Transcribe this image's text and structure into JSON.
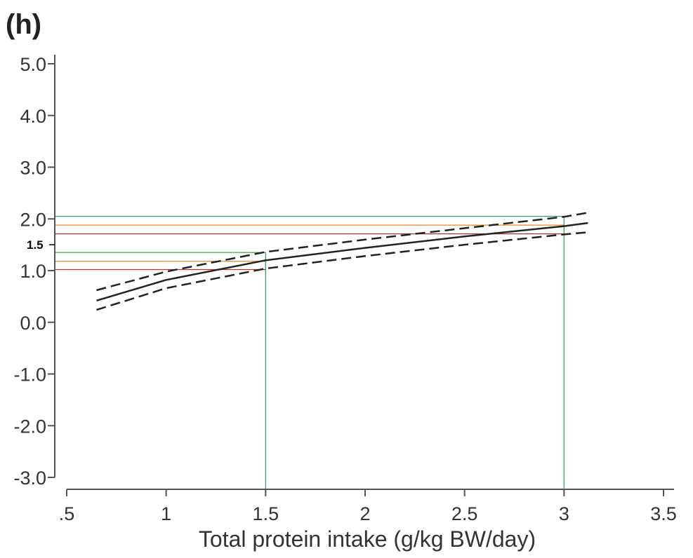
{
  "chart_data": {
    "type": "line",
    "panel_label": "(h)",
    "title": "",
    "xlabel": "Total protein intake (g/kg BW/day)",
    "ylabel": "",
    "xlim": [
      0.5,
      3.5
    ],
    "ylim": [
      -3.0,
      5.0
    ],
    "x_ticks": [
      ".5",
      "1",
      "1.5",
      "2",
      "2.5",
      "3",
      "3.5"
    ],
    "y_ticks": [
      "5.0",
      "4.0",
      "3.0",
      "2.0",
      "1.0",
      "0.0",
      "-1.0",
      "-2.0",
      "-3.0"
    ],
    "y_annotation": {
      "value": 1.5,
      "label": "1.5"
    },
    "colors": {
      "estimate": "#222222",
      "ci": "#222222",
      "green": "#2e9b4e",
      "orange": "#e08a2b",
      "red": "#b0332f",
      "axis": "#555555"
    },
    "series": [
      {
        "name": "estimate",
        "style": "solid",
        "x": [
          0.65,
          1.0,
          1.5,
          2.0,
          2.5,
          3.0,
          3.12
        ],
        "y": [
          0.42,
          0.82,
          1.2,
          1.44,
          1.66,
          1.86,
          1.92
        ]
      },
      {
        "name": "upper 95% CI",
        "style": "dashed",
        "x": [
          0.65,
          1.0,
          1.5,
          2.0,
          2.5,
          3.0,
          3.12
        ],
        "y": [
          0.62,
          0.98,
          1.36,
          1.6,
          1.82,
          2.04,
          2.12
        ]
      },
      {
        "name": "lower 95% CI",
        "style": "dashed",
        "x": [
          0.65,
          1.0,
          1.5,
          2.0,
          2.5,
          3.0,
          3.12
        ],
        "y": [
          0.24,
          0.66,
          1.04,
          1.28,
          1.5,
          1.7,
          1.74
        ]
      }
    ],
    "reference_lines": [
      {
        "name": "upper CI at 3.0",
        "color": "green",
        "y": 2.05,
        "x_end": 3.0
      },
      {
        "name": "estimate at 3.0",
        "color": "orange",
        "y": 1.88,
        "x_end": 3.0
      },
      {
        "name": "lower CI at 3.0",
        "color": "red",
        "y": 1.71,
        "x_end": 3.0
      },
      {
        "name": "upper CI at 1.5",
        "color": "green",
        "y": 1.35,
        "x_end": 1.5
      },
      {
        "name": "estimate at 1.5",
        "color": "orange",
        "y": 1.18,
        "x_end": 1.5
      },
      {
        "name": "lower CI at 1.5",
        "color": "red",
        "y": 1.02,
        "x_end": 1.5
      }
    ],
    "vertical_lines": [
      {
        "name": "x = 1.5",
        "color": "green",
        "x": 1.5,
        "y_top": 1.35
      },
      {
        "name": "x = 3.0",
        "color": "green",
        "x": 3.0,
        "y_top": 2.05
      }
    ]
  }
}
